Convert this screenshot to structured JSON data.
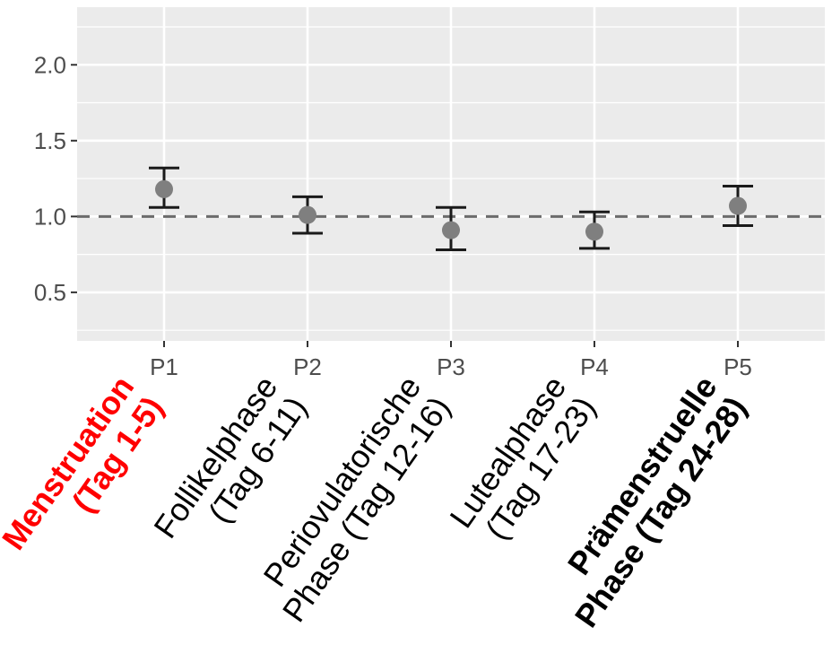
{
  "chart_data": {
    "type": "scatter",
    "categories": [
      "P1",
      "P2",
      "P3",
      "P4",
      "P5"
    ],
    "estimate": [
      1.18,
      1.01,
      0.91,
      0.9,
      1.07
    ],
    "ci_lower": [
      1.06,
      0.89,
      0.78,
      0.79,
      0.94
    ],
    "ci_upper": [
      1.32,
      1.13,
      1.06,
      1.03,
      1.2
    ],
    "reference_line": 1.0,
    "ylim": [
      0.18,
      2.38
    ],
    "yticks": [
      "0.5",
      "1.0",
      "1.5",
      "2.0"
    ],
    "grid": true,
    "colors": {
      "panel": "#ebebeb",
      "grid": "#ffffff",
      "point": "#7f7f7f",
      "errorbar": "#1a1a1a",
      "refline": "#6b6b6b",
      "axis_text": "#4d4d4d"
    }
  },
  "phase_labels": [
    {
      "line1": "Menstruation",
      "line2": "(Tag 1-5)",
      "color": "#ff0000",
      "bold": true
    },
    {
      "line1": "Follikelphase",
      "line2": "(Tag 6-11)",
      "color": "#000000",
      "bold": false
    },
    {
      "line1": "Periovulatorische",
      "line2": "Phase (Tag 12-16)",
      "color": "#000000",
      "bold": false
    },
    {
      "line1": "Lutealphase",
      "line2": "(Tag 17-23)",
      "color": "#000000",
      "bold": false
    },
    {
      "line1": "Prämenstruelle",
      "line2": "Phase (Tag 24-28)",
      "color": "#000000",
      "bold": true
    }
  ]
}
